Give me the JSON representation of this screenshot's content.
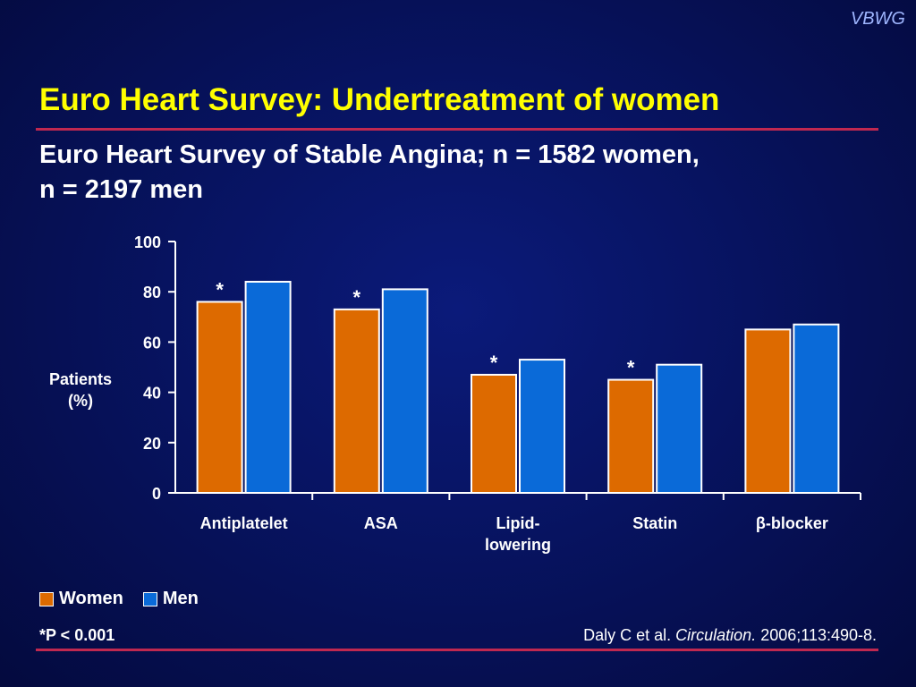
{
  "brand": "VBWG",
  "title": "Euro Heart Survey: Undertreatment of women",
  "subtitle_line1": "Euro Heart Survey of Stable Angina; n = 1582 women,",
  "subtitle_line2": "n = 2197 men",
  "colors": {
    "women": "#dd6a00",
    "men": "#0a6ad8",
    "accent": "#ffff00",
    "rule": "#c02850"
  },
  "chart_data": {
    "type": "bar",
    "categories": [
      "Antiplatelet",
      "ASA",
      "Lipid-\nlowering",
      "Statin",
      "β-blocker"
    ],
    "series": [
      {
        "name": "Women",
        "values": [
          76,
          73,
          47,
          45,
          65
        ]
      },
      {
        "name": "Men",
        "values": [
          84,
          81,
          53,
          51,
          67
        ]
      }
    ],
    "significance_marks": [
      "*",
      "*",
      "*",
      "*",
      ""
    ],
    "ylabel": "Patients\n(%)",
    "ylim": [
      0,
      100
    ],
    "yticks": [
      0,
      20,
      40,
      60,
      80,
      100
    ],
    "grid": false,
    "legend_position": "bottom-left"
  },
  "legend": {
    "women": "Women",
    "men": "Men"
  },
  "footnote": "*P < 0.001",
  "citation": {
    "authors": "Daly C et al.",
    "journal": "Circulation.",
    "details": "2006;113:490-8."
  }
}
